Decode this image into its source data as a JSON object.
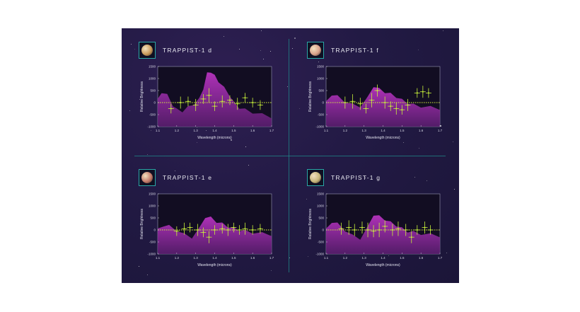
{
  "colors": {
    "background": "#221a44",
    "model_fill": "#c035c8",
    "model_fill_dark": "#5e1f74",
    "data_points": "#c8f23a",
    "zero_line": "#d6f23a",
    "divider": "#1f8a8a"
  },
  "chart_data": [
    {
      "type": "line",
      "title": "TRAPPIST-1 d",
      "planet_icon": "planet-d-icon",
      "planet_color": "#c99a5a",
      "xlabel": "Wavelength (microns)",
      "ylabel": "Relative Brightness",
      "xlim": [
        1.1,
        1.7
      ],
      "ylim": [
        -1000,
        1500
      ],
      "xticks": [
        "1.1",
        "1.2",
        "1.3",
        "1.4",
        "1.5",
        "1.6",
        "1.7"
      ],
      "yticks": [
        "1500",
        "1000",
        "500",
        "0",
        "-500",
        "-1000"
      ],
      "model_spectrum": {
        "x": [
          1.1,
          1.12,
          1.15,
          1.18,
          1.2,
          1.23,
          1.26,
          1.29,
          1.32,
          1.34,
          1.36,
          1.38,
          1.4,
          1.42,
          1.45,
          1.48,
          1.5,
          1.53,
          1.56,
          1.6,
          1.65,
          1.7
        ],
        "y": [
          100,
          450,
          300,
          -100,
          -300,
          -350,
          -200,
          -50,
          150,
          600,
          1200,
          1300,
          1100,
          900,
          600,
          300,
          0,
          -200,
          -300,
          -400,
          -500,
          -600
        ]
      },
      "points": {
        "x": [
          1.17,
          1.22,
          1.26,
          1.3,
          1.34,
          1.37,
          1.4,
          1.44,
          1.48,
          1.52,
          1.56,
          1.6,
          1.64
        ],
        "y": [
          -250,
          0,
          50,
          -100,
          150,
          300,
          -150,
          50,
          100,
          -50,
          200,
          0,
          -100
        ],
        "err": [
          200,
          250,
          200,
          250,
          200,
          300,
          200,
          250,
          200,
          250,
          200,
          200,
          200
        ]
      }
    },
    {
      "type": "line",
      "title": "TRAPPIST-1 f",
      "planet_icon": "planet-f-icon",
      "planet_color": "#d8a08a",
      "xlabel": "Wavelength (microns)",
      "ylabel": "Relative Brightness",
      "xlim": [
        1.1,
        1.7
      ],
      "ylim": [
        -1000,
        1500
      ],
      "xticks": [
        "1.1",
        "1.2",
        "1.3",
        "1.4",
        "1.5",
        "1.6",
        "1.7"
      ],
      "yticks": [
        "1500",
        "1000",
        "500",
        "0",
        "-500",
        "-1000"
      ],
      "model_spectrum": {
        "x": [
          1.1,
          1.13,
          1.16,
          1.2,
          1.24,
          1.28,
          1.32,
          1.35,
          1.38,
          1.41,
          1.44,
          1.47,
          1.5,
          1.53,
          1.56,
          1.6,
          1.65,
          1.7
        ],
        "y": [
          0,
          350,
          250,
          50,
          -100,
          -150,
          200,
          700,
          550,
          450,
          350,
          250,
          100,
          0,
          -100,
          -150,
          -200,
          -250
        ]
      },
      "points": {
        "x": [
          1.2,
          1.24,
          1.28,
          1.31,
          1.34,
          1.37,
          1.41,
          1.44,
          1.47,
          1.5,
          1.53,
          1.58,
          1.61,
          1.64
        ],
        "y": [
          0,
          50,
          -50,
          -250,
          100,
          500,
          0,
          -150,
          -250,
          -300,
          -100,
          400,
          450,
          400
        ],
        "err": [
          250,
          300,
          250,
          200,
          300,
          250,
          250,
          200,
          250,
          200,
          250,
          200,
          250,
          200
        ]
      }
    },
    {
      "type": "line",
      "title": "TRAPPIST-1 e",
      "planet_icon": "planet-e-icon",
      "planet_color": "#c47a6a",
      "xlabel": "Wavelength (microns)",
      "ylabel": "Relative Brightness",
      "xlim": [
        1.1,
        1.7
      ],
      "ylim": [
        -1000,
        1500
      ],
      "xticks": [
        "1.1",
        "1.2",
        "1.3",
        "1.4",
        "1.5",
        "1.6",
        "1.7"
      ],
      "yticks": [
        "1500",
        "1000",
        "500",
        "0",
        "-500",
        "-1000"
      ],
      "model_spectrum": {
        "x": [
          1.1,
          1.13,
          1.16,
          1.2,
          1.24,
          1.28,
          1.32,
          1.35,
          1.38,
          1.41,
          1.44,
          1.47,
          1.5,
          1.53,
          1.56,
          1.6,
          1.65,
          1.7
        ],
        "y": [
          0,
          200,
          150,
          0,
          -200,
          -300,
          50,
          550,
          500,
          350,
          250,
          150,
          50,
          0,
          -50,
          -100,
          -150,
          -200
        ]
      },
      "points": {
        "x": [
          1.2,
          1.24,
          1.27,
          1.31,
          1.34,
          1.37,
          1.4,
          1.44,
          1.47,
          1.5,
          1.53,
          1.56,
          1.6,
          1.64
        ],
        "y": [
          -50,
          50,
          100,
          0,
          -100,
          -300,
          0,
          50,
          0,
          100,
          0,
          50,
          0,
          50
        ],
        "err": [
          200,
          250,
          200,
          250,
          200,
          250,
          200,
          200,
          250,
          200,
          200,
          250,
          200,
          200
        ]
      }
    },
    {
      "type": "line",
      "title": "TRAPPIST-1 g",
      "planet_icon": "planet-g-icon",
      "planet_color": "#c6b67a",
      "xlabel": "Wavelength (microns)",
      "ylabel": "Relative Brightness",
      "xlim": [
        1.1,
        1.7
      ],
      "ylim": [
        -1000,
        1500
      ],
      "xticks": [
        "1.1",
        "1.2",
        "1.3",
        "1.4",
        "1.5",
        "1.6",
        "1.7"
      ],
      "yticks": [
        "1500",
        "1000",
        "500",
        "0",
        "-500",
        "-1000"
      ],
      "model_spectrum": {
        "x": [
          1.1,
          1.13,
          1.16,
          1.2,
          1.24,
          1.28,
          1.32,
          1.35,
          1.38,
          1.41,
          1.44,
          1.47,
          1.5,
          1.53,
          1.56,
          1.6,
          1.65,
          1.7
        ],
        "y": [
          0,
          350,
          250,
          0,
          -250,
          -350,
          100,
          650,
          550,
          450,
          300,
          200,
          50,
          -50,
          -100,
          -150,
          -200,
          -250
        ]
      },
      "points": {
        "x": [
          1.18,
          1.22,
          1.25,
          1.29,
          1.32,
          1.35,
          1.38,
          1.41,
          1.45,
          1.48,
          1.52,
          1.55,
          1.58,
          1.62,
          1.65
        ],
        "y": [
          50,
          100,
          0,
          100,
          0,
          -50,
          0,
          150,
          0,
          50,
          0,
          -300,
          0,
          100,
          0
        ],
        "err": [
          250,
          300,
          250,
          250,
          300,
          250,
          300,
          250,
          250,
          300,
          250,
          250,
          200,
          250,
          200
        ]
      }
    }
  ]
}
